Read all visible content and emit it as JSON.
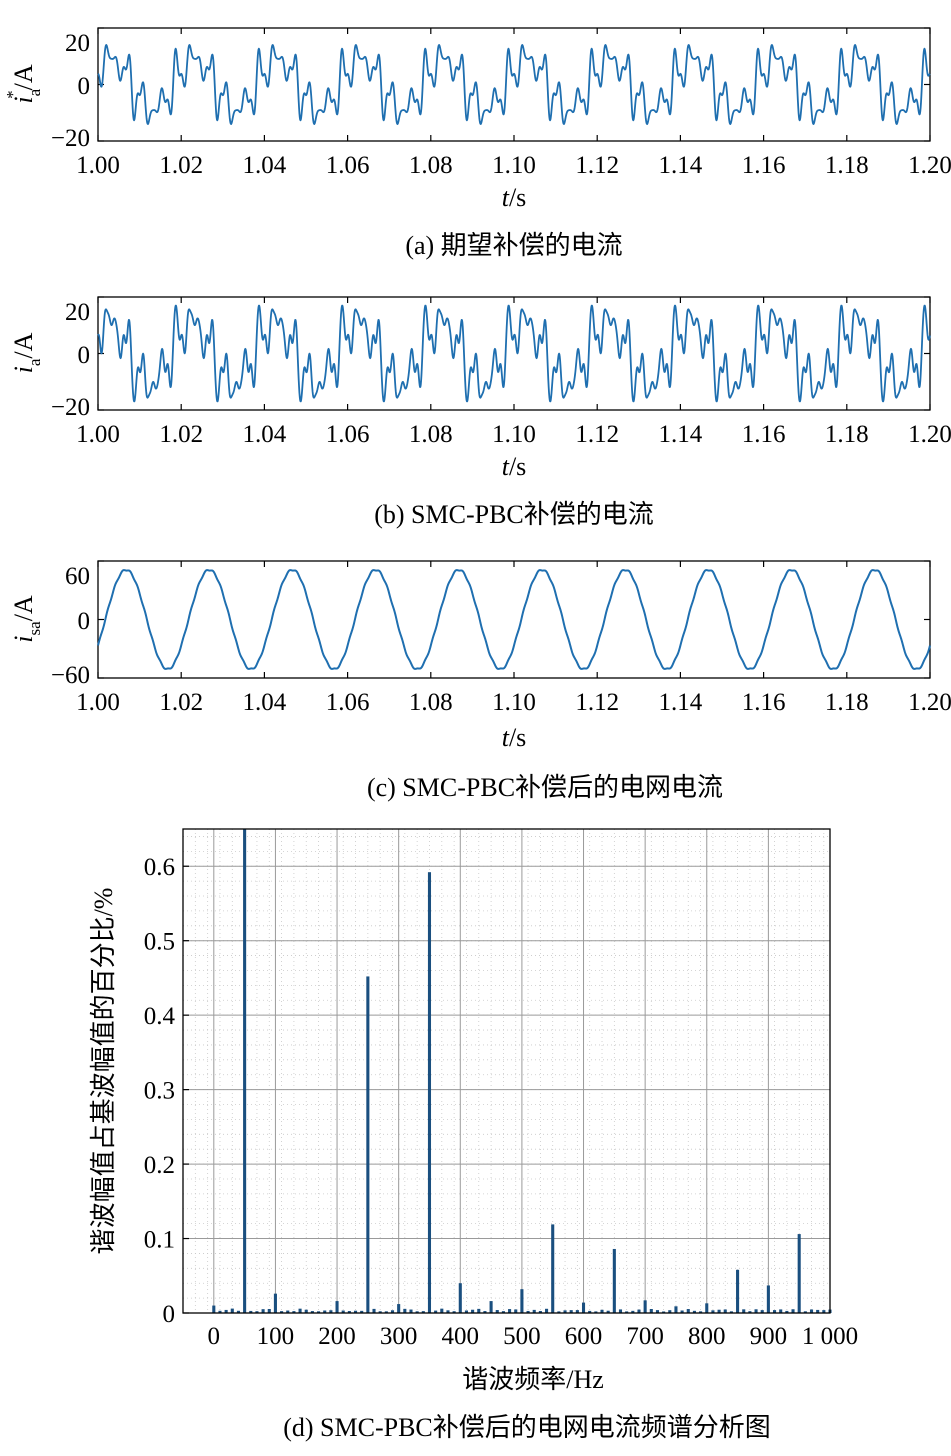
{
  "colors": {
    "line": "#1f6fb0",
    "bar": "#1a4f7f",
    "grid": "#c8c8c8"
  },
  "chart_data": [
    {
      "type": "line",
      "caption": "(a) 期望补偿的电流",
      "ylabel_main": "i",
      "ylabel_sup": "*",
      "ylabel_sub": "a",
      "ylabel_unit": "/A",
      "xlabel_main": "t",
      "xlabel_unit": "/s",
      "xlim": [
        1.0,
        1.2
      ],
      "ylim": [
        -20,
        20
      ],
      "xticks": [
        "1.00",
        "1.02",
        "1.04",
        "1.06",
        "1.08",
        "1.10",
        "1.12",
        "1.14",
        "1.16",
        "1.18",
        "1.20"
      ],
      "yticks": [
        "20",
        "0",
        "−20"
      ],
      "description": "periodic harmonic current, period 0.02 s, peaks about 14 A, troughs about −14 A",
      "series": [
        {
          "name": "",
          "period": 0.02,
          "peak": 14,
          "trough": -14
        }
      ]
    },
    {
      "type": "line",
      "caption": "(b) SMC-PBC补偿的电流",
      "ylabel_main": "i",
      "ylabel_sup": "",
      "ylabel_sub": "a",
      "ylabel_unit": "/A",
      "xlabel_main": "t",
      "xlabel_unit": "/s",
      "xlim": [
        1.0,
        1.2
      ],
      "ylim": [
        -20,
        20
      ],
      "xticks": [
        "1.00",
        "1.02",
        "1.04",
        "1.06",
        "1.08",
        "1.10",
        "1.12",
        "1.14",
        "1.16",
        "1.18",
        "1.20"
      ],
      "yticks": [
        "20",
        "0",
        "−20"
      ],
      "series": [
        {
          "name": "",
          "period": 0.02,
          "peak": 17,
          "trough": -17
        }
      ]
    },
    {
      "type": "line",
      "caption": "(c)  SMC-PBC补偿后的电网电流",
      "ylabel_main": "i",
      "ylabel_sup": "",
      "ylabel_sub": "sa",
      "ylabel_unit": "/A",
      "xlabel_main": "t",
      "xlabel_unit": "/s",
      "xlim": [
        1.0,
        1.2
      ],
      "ylim": [
        -60,
        60
      ],
      "xticks": [
        "1.00",
        "1.02",
        "1.04",
        "1.06",
        "1.08",
        "1.10",
        "1.12",
        "1.14",
        "1.16",
        "1.18",
        "1.20"
      ],
      "yticks": [
        "60",
        "0",
        "−60"
      ],
      "series": [
        {
          "name": "",
          "amplitude": 51,
          "frequency_hz": 50
        }
      ]
    },
    {
      "type": "bar",
      "caption": "(d) SMC-PBC补偿后的电网电流频谱分析图",
      "ylabel": "谐波幅值占基波幅值的百分比/%",
      "xlabel": "谐波频率/Hz",
      "xlim": [
        -50,
        1000
      ],
      "ylim": [
        0,
        0.65
      ],
      "xticks": [
        "0",
        "100",
        "200",
        "300",
        "400",
        "500",
        "600",
        "700",
        "800",
        "900",
        "1 000"
      ],
      "yticks": [
        "0",
        "0.1",
        "0.2",
        "0.3",
        "0.4",
        "0.5",
        "0.6"
      ],
      "bin_width_hz": 10,
      "bars": [
        {
          "x": 0,
          "value": 0.01
        },
        {
          "x": 50,
          "value": 0.65
        },
        {
          "x": 100,
          "value": 0.026
        },
        {
          "x": 200,
          "value": 0.016
        },
        {
          "x": 250,
          "value": 0.452
        },
        {
          "x": 300,
          "value": 0.012
        },
        {
          "x": 350,
          "value": 0.592
        },
        {
          "x": 400,
          "value": 0.04
        },
        {
          "x": 450,
          "value": 0.016
        },
        {
          "x": 500,
          "value": 0.032
        },
        {
          "x": 550,
          "value": 0.119
        },
        {
          "x": 600,
          "value": 0.014
        },
        {
          "x": 650,
          "value": 0.086
        },
        {
          "x": 700,
          "value": 0.017
        },
        {
          "x": 750,
          "value": 0.009
        },
        {
          "x": 800,
          "value": 0.013
        },
        {
          "x": 850,
          "value": 0.058
        },
        {
          "x": 900,
          "value": 0.037
        },
        {
          "x": 950,
          "value": 0.106
        }
      ]
    }
  ]
}
